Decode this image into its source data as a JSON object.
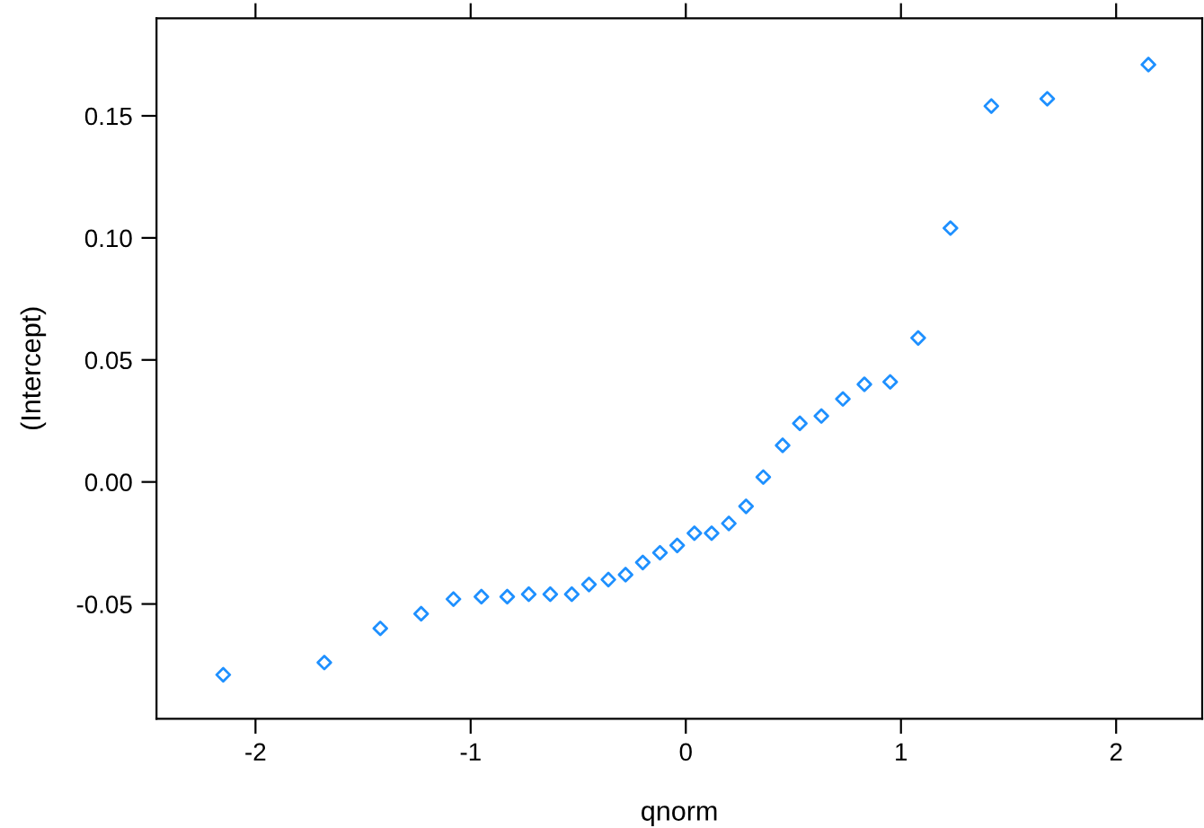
{
  "chart_data": {
    "type": "scatter",
    "xlabel": "qnorm",
    "ylabel": "(Intercept)",
    "x": [
      -2.15,
      -1.68,
      -1.42,
      -1.23,
      -1.08,
      -0.95,
      -0.83,
      -0.73,
      -0.63,
      -0.53,
      -0.45,
      -0.36,
      -0.28,
      -0.2,
      -0.12,
      -0.04,
      0.04,
      0.12,
      0.2,
      0.28,
      0.36,
      0.45,
      0.53,
      0.63,
      0.73,
      0.83,
      0.95,
      1.08,
      1.23,
      1.42,
      1.68,
      2.15
    ],
    "series": [
      {
        "color": "#1e90ff",
        "values": [
          -0.079,
          -0.074,
          -0.06,
          -0.054,
          -0.048,
          -0.047,
          -0.047,
          -0.046,
          -0.046,
          -0.046,
          -0.042,
          -0.04,
          -0.038,
          -0.033,
          -0.029,
          -0.026,
          -0.021,
          -0.021,
          -0.017,
          -0.01,
          0.002,
          0.015,
          0.024,
          0.027,
          0.034,
          0.04,
          0.041,
          0.059,
          0.104,
          0.154,
          0.157,
          0.171
        ]
      }
    ],
    "marker": "diamond",
    "xlim": [
      -2.46,
      2.4
    ],
    "ylim": [
      -0.097,
      0.19
    ],
    "xticks": [
      -2,
      -1,
      0,
      1,
      2
    ],
    "yticks": [
      -0.05,
      {
        "value": 0.0,
        "label": "0.00"
      },
      0.05,
      {
        "value": 0.1,
        "label": "0.10"
      },
      0.15
    ],
    "grid": false,
    "legend": false
  }
}
